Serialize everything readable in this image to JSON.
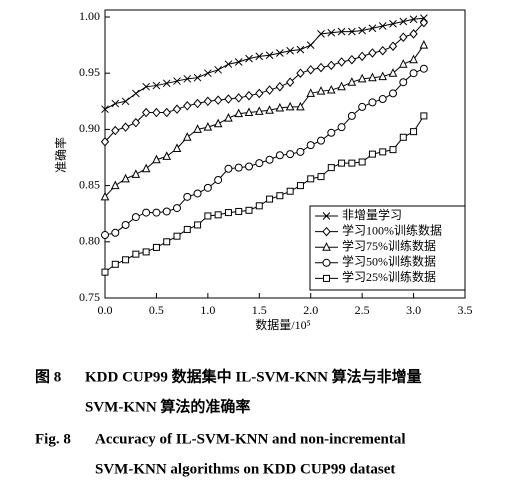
{
  "chart_data": {
    "type": "line",
    "x_label": "数据量/10⁵",
    "y_label": "准确率",
    "x": [
      0,
      0.1,
      0.2,
      0.3,
      0.4,
      0.5,
      0.6,
      0.7,
      0.8,
      0.9,
      1.0,
      1.1,
      1.2,
      1.3,
      1.4,
      1.5,
      1.6,
      1.7,
      1.8,
      1.9,
      2.0,
      2.1,
      2.2,
      2.3,
      2.4,
      2.5,
      2.6,
      2.7,
      2.8,
      2.9,
      3.0,
      3.1
    ],
    "series": [
      {
        "name": "非增量学习",
        "color": "#000000",
        "marker": "x",
        "values": [
          0.918,
          0.923,
          0.925,
          0.932,
          0.938,
          0.939,
          0.941,
          0.943,
          0.945,
          0.946,
          0.95,
          0.953,
          0.958,
          0.96,
          0.963,
          0.965,
          0.966,
          0.968,
          0.97,
          0.971,
          0.975,
          0.985,
          0.986,
          0.987,
          0.987,
          0.988,
          0.99,
          0.992,
          0.994,
          0.996,
          0.998,
          0.999
        ]
      },
      {
        "name": "学习100%训练数据",
        "color": "#000000",
        "marker": "diamond",
        "values": [
          0.889,
          0.899,
          0.902,
          0.906,
          0.915,
          0.915,
          0.915,
          0.918,
          0.921,
          0.923,
          0.925,
          0.926,
          0.927,
          0.928,
          0.93,
          0.932,
          0.935,
          0.938,
          0.942,
          0.95,
          0.953,
          0.955,
          0.957,
          0.96,
          0.962,
          0.965,
          0.968,
          0.97,
          0.974,
          0.982,
          0.985,
          0.995
        ]
      },
      {
        "name": "学习75%训练数据",
        "color": "#000000",
        "marker": "triangle",
        "values": [
          0.84,
          0.85,
          0.856,
          0.86,
          0.865,
          0.873,
          0.876,
          0.883,
          0.893,
          0.9,
          0.902,
          0.905,
          0.91,
          0.914,
          0.915,
          0.916,
          0.917,
          0.919,
          0.92,
          0.92,
          0.932,
          0.934,
          0.935,
          0.938,
          0.942,
          0.945,
          0.946,
          0.947,
          0.95,
          0.958,
          0.962,
          0.975
        ]
      },
      {
        "name": "学习50%训练数据",
        "color": "#000000",
        "marker": "circle",
        "values": [
          0.806,
          0.808,
          0.815,
          0.822,
          0.826,
          0.826,
          0.827,
          0.83,
          0.84,
          0.843,
          0.848,
          0.855,
          0.865,
          0.866,
          0.867,
          0.87,
          0.873,
          0.877,
          0.878,
          0.88,
          0.886,
          0.89,
          0.897,
          0.902,
          0.912,
          0.92,
          0.924,
          0.927,
          0.932,
          0.942,
          0.95,
          0.954
        ]
      },
      {
        "name": "学习25%训练数据",
        "color": "#000000",
        "marker": "square",
        "values": [
          0.773,
          0.78,
          0.784,
          0.789,
          0.791,
          0.795,
          0.8,
          0.805,
          0.811,
          0.815,
          0.823,
          0.824,
          0.826,
          0.827,
          0.828,
          0.832,
          0.838,
          0.841,
          0.845,
          0.85,
          0.856,
          0.858,
          0.866,
          0.87,
          0.87,
          0.871,
          0.878,
          0.88,
          0.882,
          0.893,
          0.898,
          0.912
        ]
      }
    ],
    "xlim": [
      0,
      3.5
    ],
    "xticks": [
      {
        "value": 0,
        "label": "0.0"
      },
      0.5,
      {
        "value": 1,
        "label": "1.0"
      },
      1.5,
      {
        "value": 2,
        "label": "2.0"
      },
      2.5,
      {
        "value": 3,
        "label": "3.0"
      },
      3.5
    ],
    "ylim": [
      0.75,
      1.0
    ],
    "yticks": [
      0.75,
      {
        "value": 0.8,
        "label": "0.80"
      },
      0.85,
      {
        "value": 0.9,
        "label": "0.90"
      },
      0.95,
      {
        "value": 1,
        "label": "1.00"
      }
    ],
    "grid": false,
    "legend": "lower right",
    "caption": {
      "cn_label": "图 8",
      "cn_lines": [
        "KDD CUP99 数据集中 IL-SVM-KNN 算法与非增量",
        "SVM-KNN 算法的准确率"
      ],
      "en_label": "Fig. 8",
      "en_lines": [
        "Accuracy of IL-SVM-KNN and non-incremental",
        "SVM-KNN algorithms on KDD CUP99 dataset"
      ]
    }
  }
}
